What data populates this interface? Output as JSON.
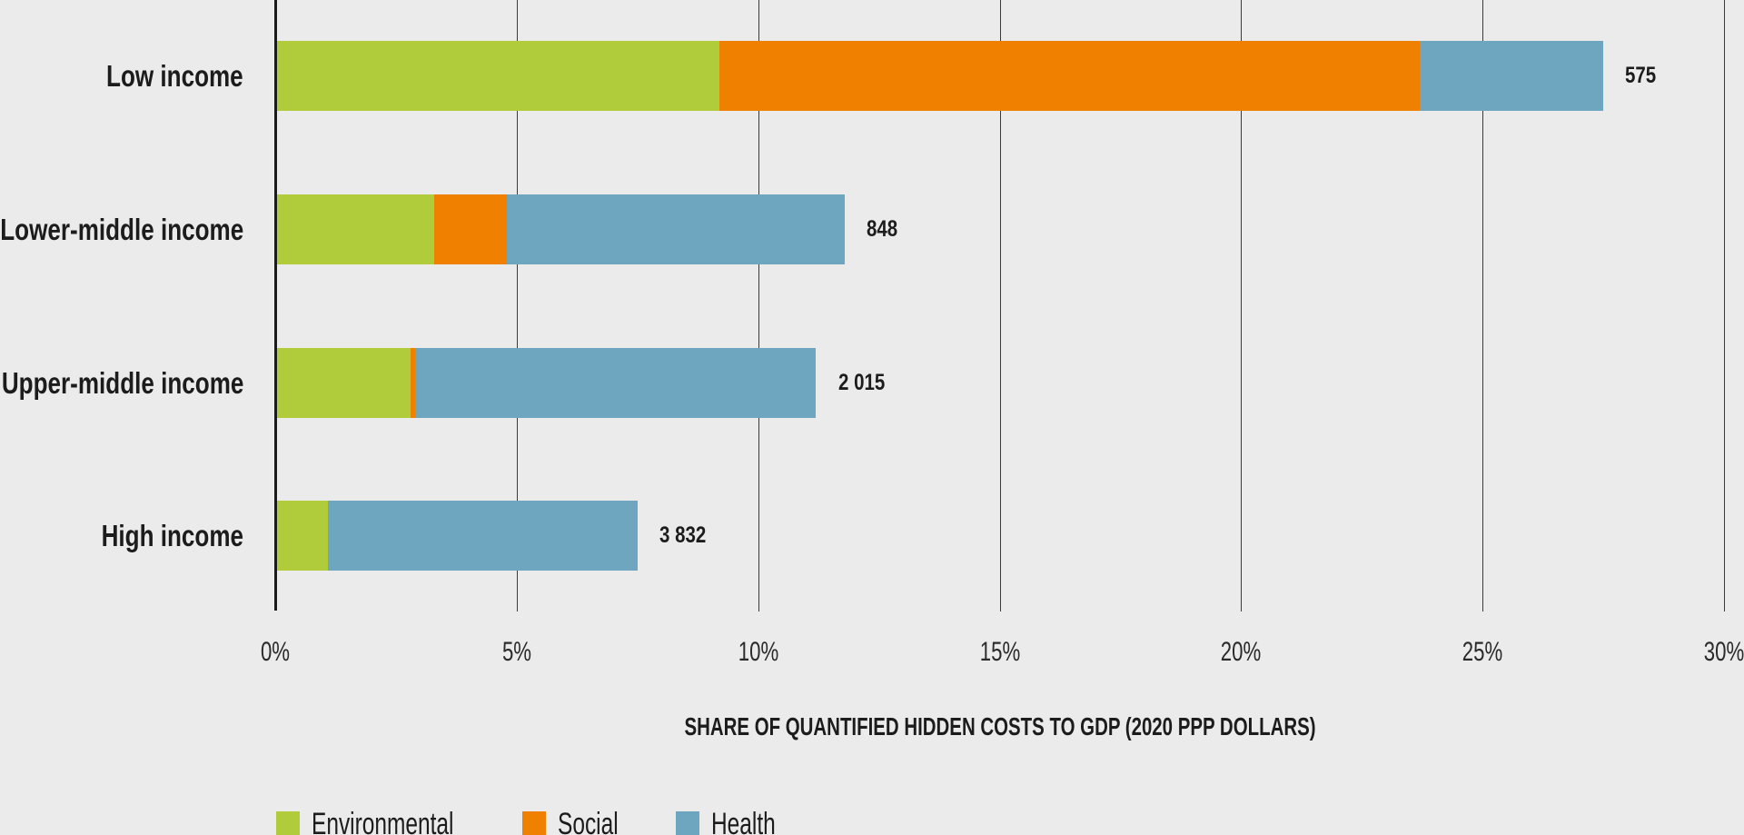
{
  "chart_data": {
    "type": "bar",
    "orientation": "horizontal",
    "stacked": true,
    "title": "",
    "xlabel": "SHARE OF QUANTIFIED HIDDEN COSTS TO GDP (2020 PPP DOLLARS)",
    "ylabel": "",
    "xlim": [
      0,
      30
    ],
    "xticks": [
      0,
      5,
      10,
      15,
      20,
      25,
      30
    ],
    "xtick_labels": [
      "0%",
      "5%",
      "10%",
      "15%",
      "20%",
      "25%",
      "30%"
    ],
    "grid": "vertical",
    "legend_placement": "bottom-left",
    "categories": [
      "Low income",
      "Lower-middle income",
      "Upper-middle income",
      "High income"
    ],
    "series": [
      {
        "name": "Environmental",
        "color": "#b0cc3a",
        "values": [
          9.2,
          3.3,
          2.8,
          1.1
        ]
      },
      {
        "name": "Social",
        "color": "#f08000",
        "values": [
          14.5,
          1.5,
          0.1,
          0.0
        ]
      },
      {
        "name": "Health",
        "color": "#6fa6bf",
        "values": [
          3.8,
          7.0,
          8.3,
          6.4
        ]
      }
    ],
    "totals": [
      27.5,
      11.8,
      11.2,
      7.5
    ],
    "bar_end_labels": [
      "575",
      "848",
      "2 015",
      "3 832"
    ]
  }
}
